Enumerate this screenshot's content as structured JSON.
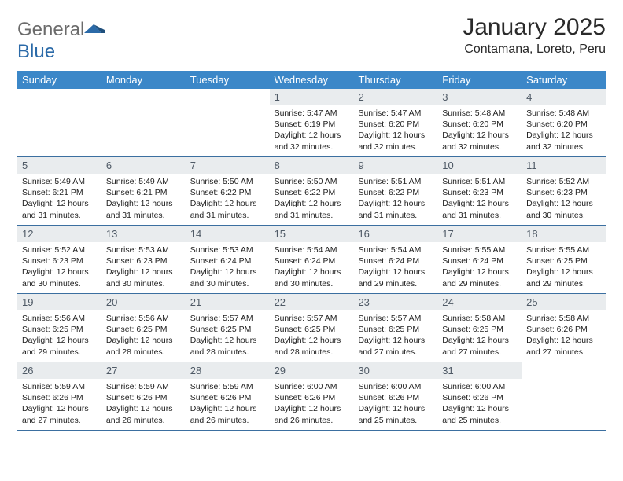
{
  "brand": {
    "name_part1": "General",
    "name_part2": "Blue"
  },
  "title": "January 2025",
  "location": "Contamana, Loreto, Peru",
  "colors": {
    "header_bg": "#3b87c8",
    "header_text": "#ffffff",
    "daynum_bg": "#e9ecee",
    "daynum_text": "#4f5a66",
    "week_border": "#3b6fa0",
    "logo_gray": "#6b6b6b",
    "logo_blue": "#2b6aa8"
  },
  "weekdays": [
    "Sunday",
    "Monday",
    "Tuesday",
    "Wednesday",
    "Thursday",
    "Friday",
    "Saturday"
  ],
  "weeks": [
    [
      null,
      null,
      null,
      {
        "n": "1",
        "sr": "5:47 AM",
        "ss": "6:19 PM",
        "dl": "12 hours and 32 minutes."
      },
      {
        "n": "2",
        "sr": "5:47 AM",
        "ss": "6:20 PM",
        "dl": "12 hours and 32 minutes."
      },
      {
        "n": "3",
        "sr": "5:48 AM",
        "ss": "6:20 PM",
        "dl": "12 hours and 32 minutes."
      },
      {
        "n": "4",
        "sr": "5:48 AM",
        "ss": "6:20 PM",
        "dl": "12 hours and 32 minutes."
      }
    ],
    [
      {
        "n": "5",
        "sr": "5:49 AM",
        "ss": "6:21 PM",
        "dl": "12 hours and 31 minutes."
      },
      {
        "n": "6",
        "sr": "5:49 AM",
        "ss": "6:21 PM",
        "dl": "12 hours and 31 minutes."
      },
      {
        "n": "7",
        "sr": "5:50 AM",
        "ss": "6:22 PM",
        "dl": "12 hours and 31 minutes."
      },
      {
        "n": "8",
        "sr": "5:50 AM",
        "ss": "6:22 PM",
        "dl": "12 hours and 31 minutes."
      },
      {
        "n": "9",
        "sr": "5:51 AM",
        "ss": "6:22 PM",
        "dl": "12 hours and 31 minutes."
      },
      {
        "n": "10",
        "sr": "5:51 AM",
        "ss": "6:23 PM",
        "dl": "12 hours and 31 minutes."
      },
      {
        "n": "11",
        "sr": "5:52 AM",
        "ss": "6:23 PM",
        "dl": "12 hours and 30 minutes."
      }
    ],
    [
      {
        "n": "12",
        "sr": "5:52 AM",
        "ss": "6:23 PM",
        "dl": "12 hours and 30 minutes."
      },
      {
        "n": "13",
        "sr": "5:53 AM",
        "ss": "6:23 PM",
        "dl": "12 hours and 30 minutes."
      },
      {
        "n": "14",
        "sr": "5:53 AM",
        "ss": "6:24 PM",
        "dl": "12 hours and 30 minutes."
      },
      {
        "n": "15",
        "sr": "5:54 AM",
        "ss": "6:24 PM",
        "dl": "12 hours and 30 minutes."
      },
      {
        "n": "16",
        "sr": "5:54 AM",
        "ss": "6:24 PM",
        "dl": "12 hours and 29 minutes."
      },
      {
        "n": "17",
        "sr": "5:55 AM",
        "ss": "6:24 PM",
        "dl": "12 hours and 29 minutes."
      },
      {
        "n": "18",
        "sr": "5:55 AM",
        "ss": "6:25 PM",
        "dl": "12 hours and 29 minutes."
      }
    ],
    [
      {
        "n": "19",
        "sr": "5:56 AM",
        "ss": "6:25 PM",
        "dl": "12 hours and 29 minutes."
      },
      {
        "n": "20",
        "sr": "5:56 AM",
        "ss": "6:25 PM",
        "dl": "12 hours and 28 minutes."
      },
      {
        "n": "21",
        "sr": "5:57 AM",
        "ss": "6:25 PM",
        "dl": "12 hours and 28 minutes."
      },
      {
        "n": "22",
        "sr": "5:57 AM",
        "ss": "6:25 PM",
        "dl": "12 hours and 28 minutes."
      },
      {
        "n": "23",
        "sr": "5:57 AM",
        "ss": "6:25 PM",
        "dl": "12 hours and 27 minutes."
      },
      {
        "n": "24",
        "sr": "5:58 AM",
        "ss": "6:25 PM",
        "dl": "12 hours and 27 minutes."
      },
      {
        "n": "25",
        "sr": "5:58 AM",
        "ss": "6:26 PM",
        "dl": "12 hours and 27 minutes."
      }
    ],
    [
      {
        "n": "26",
        "sr": "5:59 AM",
        "ss": "6:26 PM",
        "dl": "12 hours and 27 minutes."
      },
      {
        "n": "27",
        "sr": "5:59 AM",
        "ss": "6:26 PM",
        "dl": "12 hours and 26 minutes."
      },
      {
        "n": "28",
        "sr": "5:59 AM",
        "ss": "6:26 PM",
        "dl": "12 hours and 26 minutes."
      },
      {
        "n": "29",
        "sr": "6:00 AM",
        "ss": "6:26 PM",
        "dl": "12 hours and 26 minutes."
      },
      {
        "n": "30",
        "sr": "6:00 AM",
        "ss": "6:26 PM",
        "dl": "12 hours and 25 minutes."
      },
      {
        "n": "31",
        "sr": "6:00 AM",
        "ss": "6:26 PM",
        "dl": "12 hours and 25 minutes."
      },
      null
    ]
  ],
  "labels": {
    "sunrise": "Sunrise:",
    "sunset": "Sunset:",
    "daylight": "Daylight:"
  }
}
